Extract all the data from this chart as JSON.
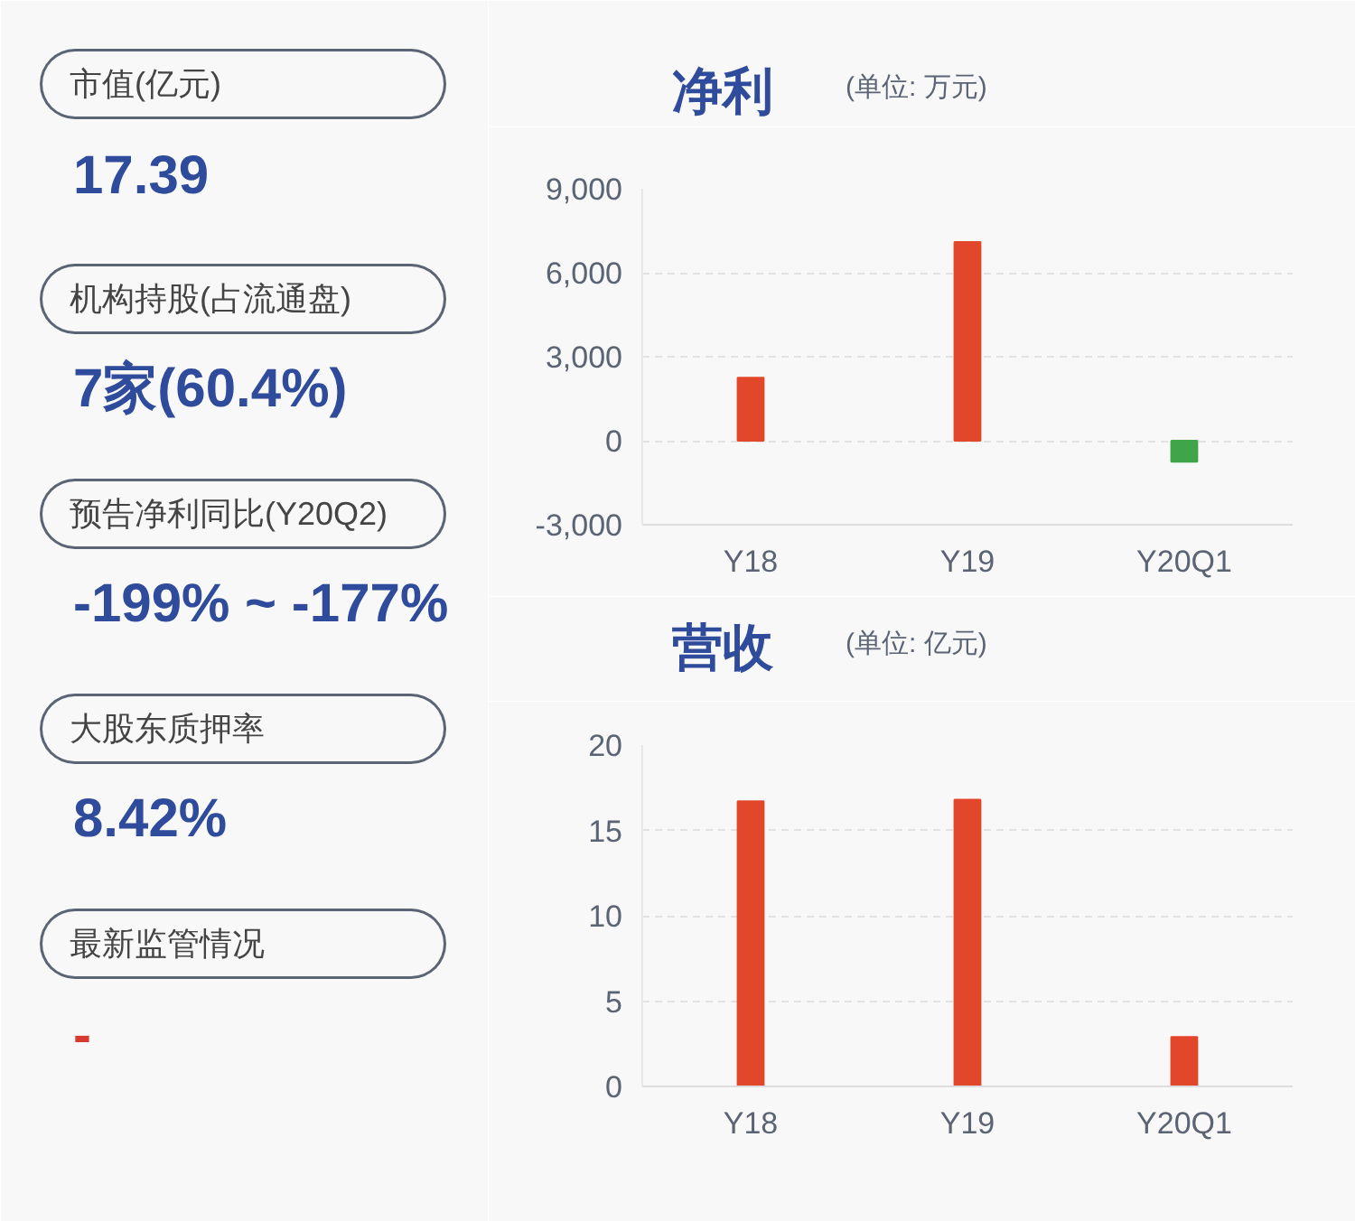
{
  "chart_data": [
    {
      "type": "other",
      "annotations": [
        "市值(亿元)",
        "17.39",
        "机构持股(占流通盘)",
        "7家(60.4%)",
        "预告净利同比(Y20Q2)",
        "-199% ~ -177%",
        "大股东质押率",
        "8.42%",
        "最新监管情况",
        "-"
      ]
    },
    {
      "type": "bar",
      "title": "净利",
      "subtitle": "(单位: 万元)",
      "categories": [
        "Y18",
        "Y19",
        "Y20Q1"
      ],
      "values": [
        2250,
        7100,
        -750
      ],
      "colors": [
        "#e2472c",
        "#e2472c",
        "#3fa548"
      ],
      "ylim": [
        -3000,
        9000
      ],
      "yticks": [
        {
          "value": -3000,
          "label": "-3,000"
        },
        0,
        {
          "value": 3000,
          "label": "3,000"
        },
        {
          "value": 6000,
          "label": "6,000"
        },
        {
          "value": 9000,
          "label": "9,000"
        }
      ],
      "grid": "y"
    },
    {
      "type": "bar",
      "title": "营收",
      "subtitle": "(单位: 亿元)",
      "categories": [
        "Y18",
        "Y19",
        "Y20Q1"
      ],
      "values": [
        16.7,
        16.8,
        2.9
      ],
      "colors": [
        "#e2472c",
        "#e2472c",
        "#e2472c"
      ],
      "ylim": [
        0,
        20
      ],
      "yticks": [
        0,
        5,
        10,
        15,
        20
      ],
      "grid": "y"
    }
  ]
}
